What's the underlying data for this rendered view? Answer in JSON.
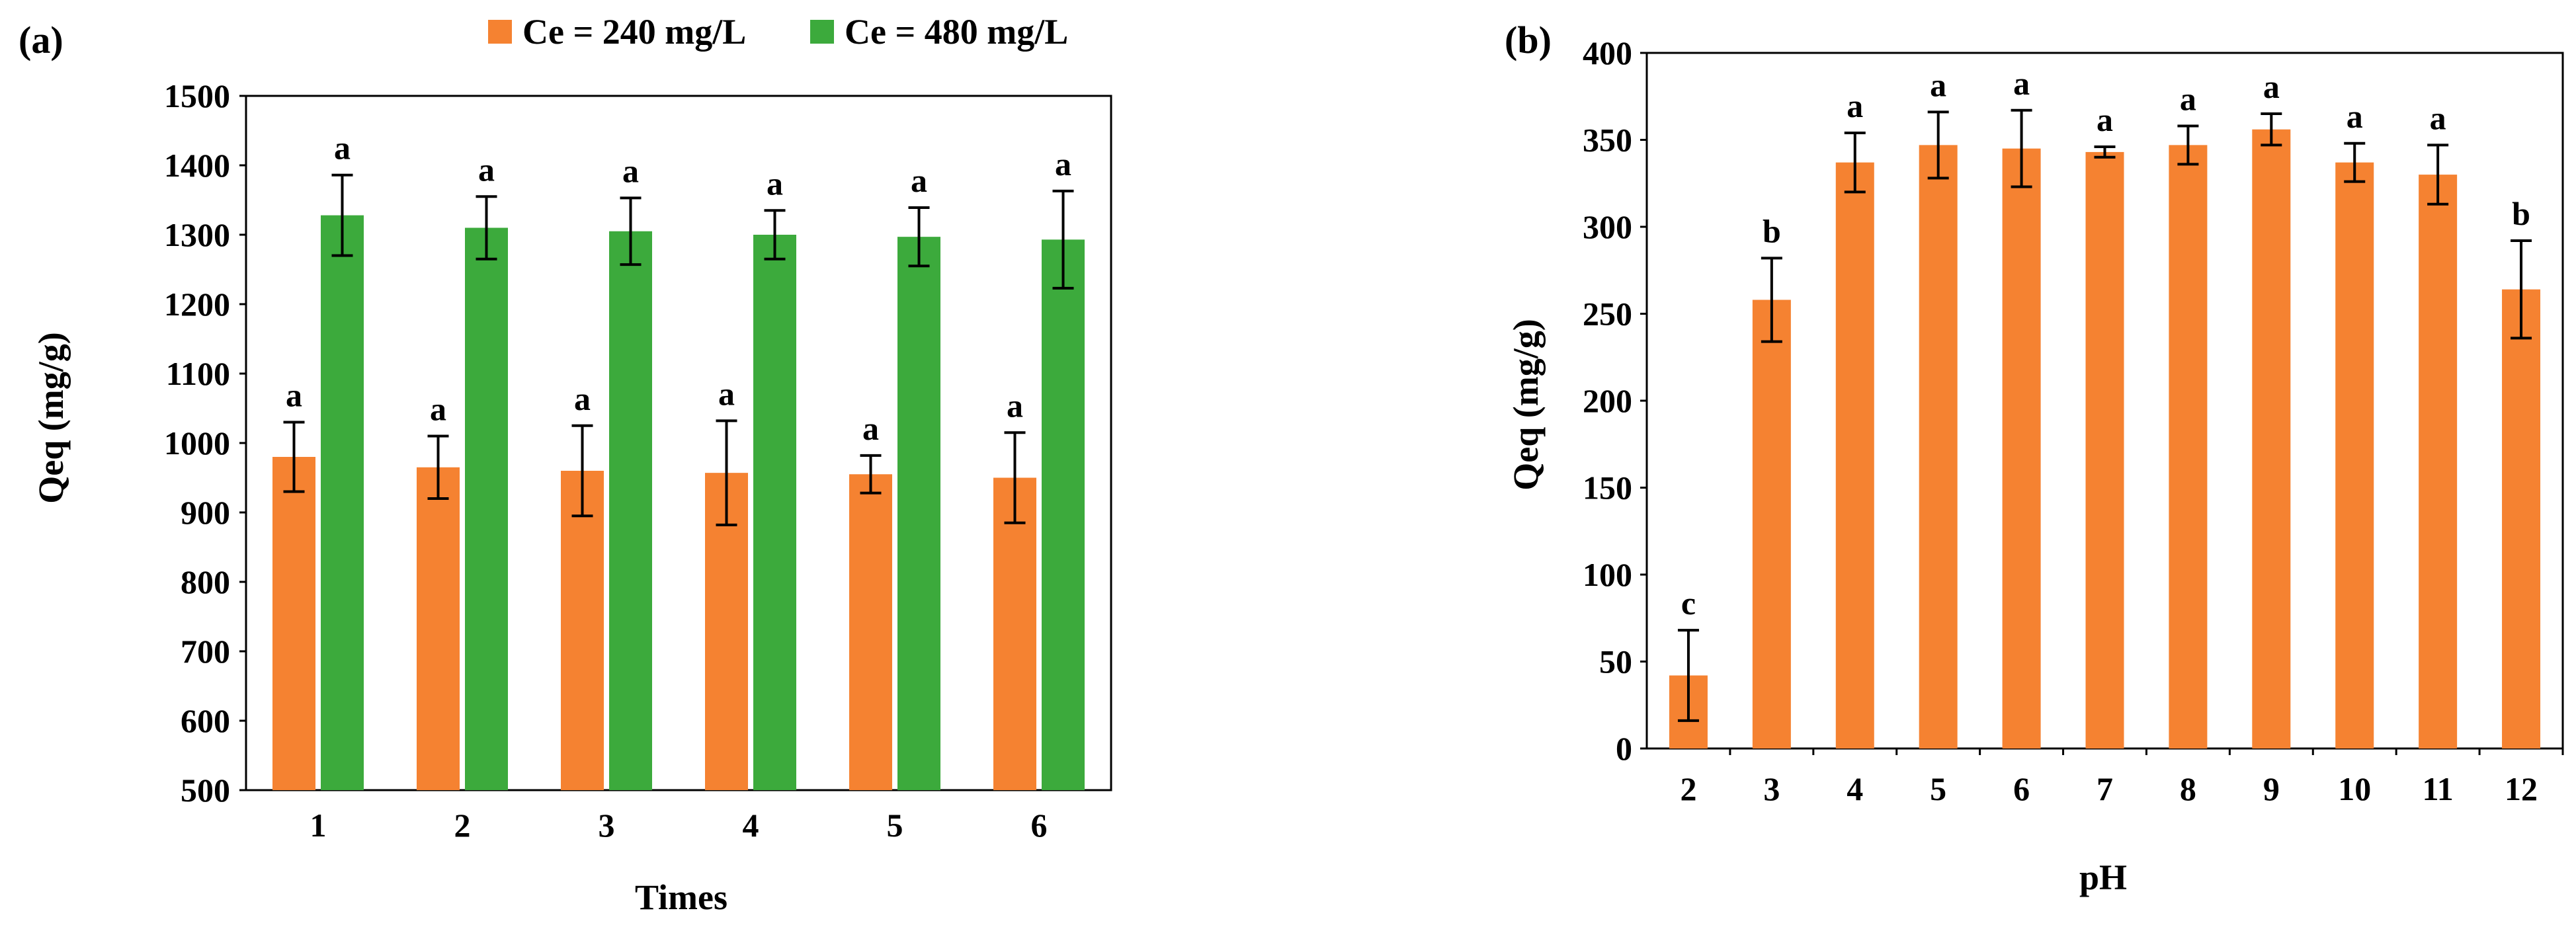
{
  "chart_data": [
    {
      "type": "bar",
      "panel_label": "(a)",
      "title": "",
      "xlabel": "Times",
      "ylabel": "Qeq (mg/g)",
      "categories": [
        "1",
        "2",
        "3",
        "4",
        "5",
        "6"
      ],
      "ylim": [
        500,
        1500
      ],
      "yticks": [
        "500",
        "600",
        "700",
        "800",
        "900",
        "1000",
        "1100",
        "1200",
        "1300",
        "1400",
        "1500"
      ],
      "legend_position": "top-right",
      "series": [
        {
          "name": "Ce = 240 mg/L",
          "color": "#F58231",
          "values": [
            980,
            965,
            960,
            957,
            955,
            950
          ],
          "errors": [
            50,
            45,
            65,
            75,
            27,
            65
          ],
          "letters": [
            "a",
            "a",
            "a",
            "a",
            "a",
            "a"
          ]
        },
        {
          "name": "Ce = 480 mg/L",
          "color": "#3CAA3C",
          "values": [
            1328,
            1310,
            1305,
            1300,
            1297,
            1293
          ],
          "errors": [
            58,
            45,
            48,
            35,
            42,
            70
          ],
          "letters": [
            "a",
            "a",
            "a",
            "a",
            "a",
            "a"
          ]
        }
      ]
    },
    {
      "type": "bar",
      "panel_label": "(b)",
      "title": "",
      "xlabel": "pH",
      "ylabel": "Qeq (mg/g)",
      "categories": [
        "2",
        "3",
        "4",
        "5",
        "6",
        "7",
        "8",
        "9",
        "10",
        "11",
        "12"
      ],
      "ylim": [
        0,
        400
      ],
      "yticks": [
        "0",
        "50",
        "100",
        "150",
        "200",
        "250",
        "300",
        "350",
        "400"
      ],
      "series": [
        {
          "name": "Qeq",
          "color": "#F58231",
          "values": [
            42,
            258,
            337,
            347,
            345,
            343,
            347,
            356,
            337,
            330,
            264
          ],
          "errors": [
            26,
            24,
            17,
            19,
            22,
            3,
            11,
            9,
            11,
            17,
            28
          ],
          "letters": [
            "c",
            "b",
            "a",
            "a",
            "a",
            "a",
            "a",
            "a",
            "a",
            "a",
            "b"
          ]
        }
      ]
    }
  ]
}
